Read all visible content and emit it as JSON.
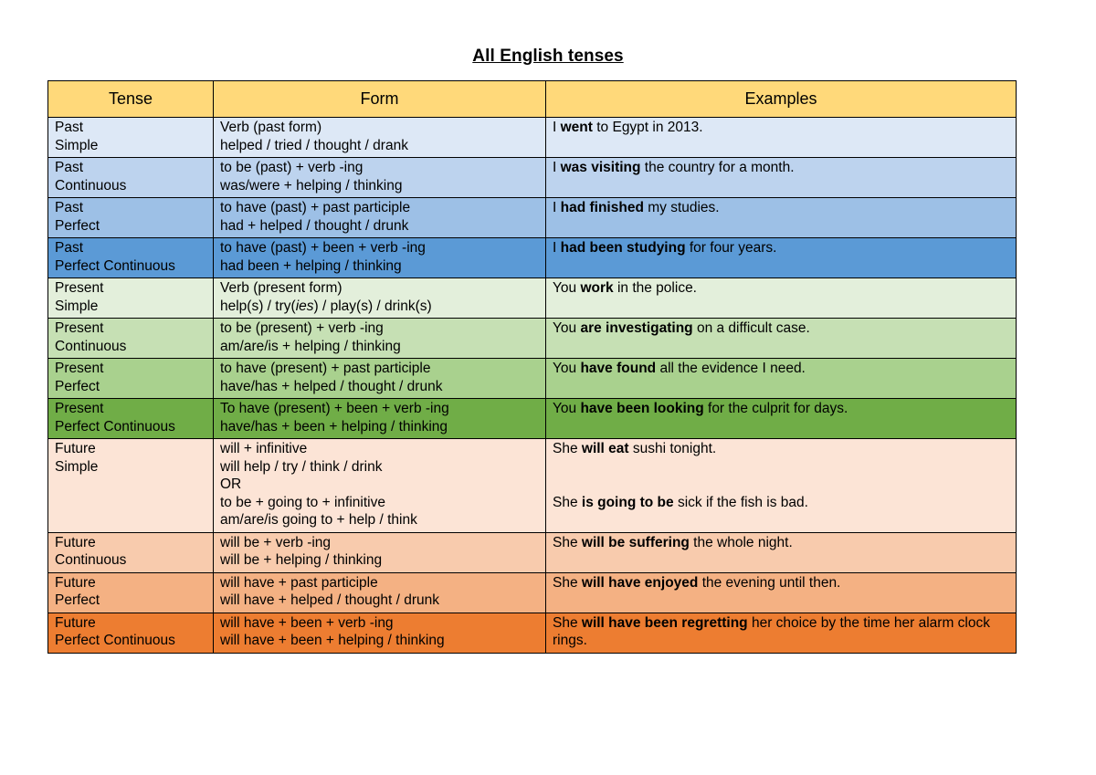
{
  "title": "All English tenses",
  "headers": {
    "tense": "Tense",
    "form": "Form",
    "examples": "Examples"
  },
  "rows": [
    {
      "tense": [
        "Past",
        "Simple"
      ],
      "form": [
        "Verb (past form)",
        "helped / tried / thought / drank"
      ],
      "examples": [
        [
          [
            "I ",
            false
          ],
          [
            "went",
            true
          ],
          [
            " to Egypt in 2013.",
            false
          ]
        ]
      ],
      "bg": "#dde8f6"
    },
    {
      "tense": [
        "Past",
        "Continuous"
      ],
      "form": [
        "to be (past) + verb -ing",
        "was/were + helping / thinking"
      ],
      "examples": [
        [
          [
            "I ",
            false
          ],
          [
            "was visiting",
            true
          ],
          [
            " the country for a month.",
            false
          ]
        ]
      ],
      "bg": "#bdd3ee"
    },
    {
      "tense": [
        "Past",
        "Perfect"
      ],
      "form": [
        "to have (past) + past participle",
        "had + helped / thought / drunk"
      ],
      "examples": [
        [
          [
            "I ",
            false
          ],
          [
            "had finished",
            true
          ],
          [
            " my studies.",
            false
          ]
        ]
      ],
      "bg": "#9dc0e6"
    },
    {
      "tense": [
        "Past",
        "Perfect Continuous"
      ],
      "form": [
        "to have (past) + been + verb -ing",
        "had been + helping / thinking"
      ],
      "examples": [
        [
          [
            "I ",
            false
          ],
          [
            "had been studying",
            true
          ],
          [
            " for four years.",
            false
          ]
        ]
      ],
      "bg": "#5b9ad6"
    },
    {
      "tense": [
        "Present",
        "Simple"
      ],
      "form": [
        "Verb (present form)",
        "help(s) / try(|ies|) / play(s) / drink(s)"
      ],
      "examples": [
        [
          [
            "You ",
            false
          ],
          [
            "work",
            true
          ],
          [
            " in the police.",
            false
          ]
        ]
      ],
      "bg": "#e3efdb"
    },
    {
      "tense": [
        "Present",
        "Continuous"
      ],
      "form": [
        "to be (present) + verb -ing",
        "am/are/is + helping / thinking"
      ],
      "examples": [
        [
          [
            "You ",
            false
          ],
          [
            "are investigating",
            true
          ],
          [
            " on a difficult case.",
            false
          ]
        ]
      ],
      "bg": "#c6e0b4"
    },
    {
      "tense": [
        "Present",
        "Perfect"
      ],
      "form": [
        "to have (present) + past participle",
        "have/has + helped / thought / drunk"
      ],
      "examples": [
        [
          [
            "You ",
            false
          ],
          [
            "have found",
            true
          ],
          [
            " all the evidence I need.",
            false
          ]
        ]
      ],
      "bg": "#a9d18e"
    },
    {
      "tense": [
        "Present",
        "Perfect Continuous"
      ],
      "form": [
        "To have (present) + been + verb -ing",
        "have/has  + been + helping / thinking"
      ],
      "examples": [
        [
          [
            "You ",
            false
          ],
          [
            "have been looking",
            true
          ],
          [
            " for the culprit for days.",
            false
          ]
        ]
      ],
      "bg": "#70ad47"
    },
    {
      "tense": [
        "Future",
        "Simple"
      ],
      "form": [
        "will + infinitive",
        "will help / try / think / drink",
        "OR",
        "to be + going to + infinitive",
        "am/are/is going to + help / think"
      ],
      "examples": [
        [
          [
            "She ",
            false
          ],
          [
            "will eat",
            true
          ],
          [
            " sushi tonight.",
            false
          ]
        ],
        [
          [
            "She ",
            false
          ],
          [
            "is going to be",
            true
          ],
          [
            " sick if the fish is bad.",
            false
          ]
        ]
      ],
      "bg": "#fce4d6",
      "tall": true
    },
    {
      "tense": [
        "Future",
        "Continuous"
      ],
      "form": [
        "will be + verb -ing",
        "will be + helping / thinking"
      ],
      "examples": [
        [
          [
            "She ",
            false
          ],
          [
            "will be suffering",
            true
          ],
          [
            " the whole night.",
            false
          ]
        ]
      ],
      "bg": "#f8cbad"
    },
    {
      "tense": [
        "Future",
        "Perfect"
      ],
      "form": [
        "will have + past participle",
        "will have + helped / thought / drunk"
      ],
      "examples": [
        [
          [
            "She ",
            false
          ],
          [
            "will have enjoyed",
            true
          ],
          [
            " the evening until then.",
            false
          ]
        ]
      ],
      "bg": "#f4b183"
    },
    {
      "tense": [
        "Future",
        "Perfect Continuous"
      ],
      "form": [
        "will have + been + verb -ing",
        "will have + been + helping / thinking"
      ],
      "examples": [
        [
          [
            "She ",
            false
          ],
          [
            "will have been regretting",
            true
          ],
          [
            " her choice by the time her alarm clock rings.",
            false
          ]
        ]
      ],
      "bg": "#ed7d31"
    }
  ]
}
